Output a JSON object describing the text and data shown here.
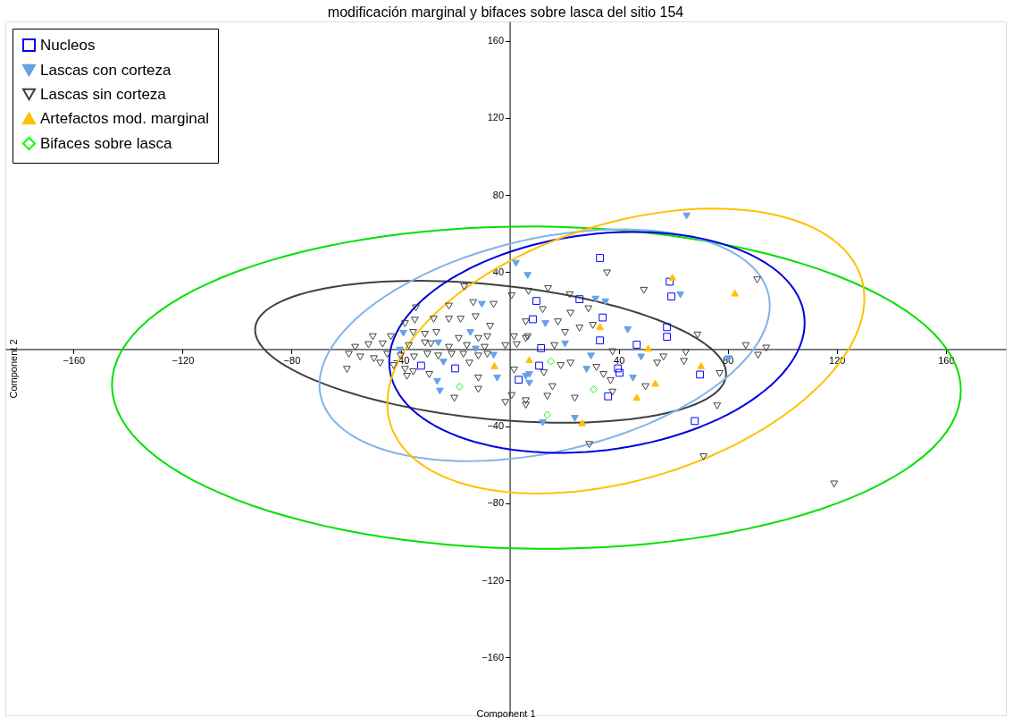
{
  "chart_data": {
    "type": "scatter",
    "title": "modificación marginal y bifaces sobre lasca del sitio 154",
    "xlabel": "Component 1",
    "ylabel": "Component 2",
    "xlim": [
      -185,
      182
    ],
    "ylim": [
      -190,
      170
    ],
    "xticks": [
      -160,
      -120,
      -80,
      -40,
      40,
      80,
      120,
      160
    ],
    "yticks": [
      -160,
      -120,
      -80,
      -40,
      40,
      80,
      120,
      160
    ],
    "grid": false,
    "legend": "top left",
    "series": [
      {
        "name": "Nucleos",
        "color": "#0000ff",
        "marker": "square",
        "x": [
          33.1,
          9.8,
          25.6,
          34.1,
          58.7,
          59.3,
          8.5,
          57.7,
          57.7,
          33.1,
          46.6,
          11.5,
          10.8,
          39.7,
          40.3,
          36.1,
          69.8,
          67.9,
          -32.5,
          -20,
          3.3
        ],
        "values": [
          47.3,
          25.0,
          25.9,
          16.4,
          35.0,
          27.3,
          15.5,
          11.4,
          6.4,
          4.5,
          2.3,
          0.5,
          -8.6,
          -10,
          -12.3,
          -24.5,
          -13.2,
          -37.3,
          -8.6,
          -10,
          -15.9
        ]
      },
      {
        "name": "Lascas con corteza",
        "color": "#66a3e8",
        "marker": "triangle-down",
        "x": [
          -10.2,
          -39.0,
          -40.3,
          -26.2,
          -14.4,
          -12.5,
          -24.3,
          -5.9,
          -4.6,
          -26.6,
          -25.6,
          5.9,
          2.3,
          6.6,
          31.5,
          35.1,
          13.1,
          43.3,
          20.3,
          62.6,
          64.9,
          7.2,
          7.2,
          29.8,
          28.2,
          45.2,
          48.2,
          80.3,
          12.1,
          23.9
        ],
        "values": [
          23.2,
          8.2,
          -0.5,
          3.2,
          8.6,
          0,
          -6.8,
          -3.2,
          -15,
          -16.8,
          -21.8,
          -14.1,
          44.5,
          38.2,
          25.9,
          24.5,
          13.2,
          10,
          2.7,
          28.2,
          69.1,
          -13.2,
          -17.7,
          -3.6,
          -10.5,
          -15,
          -4.1,
          -5,
          -38.2,
          -35.9
        ]
      },
      {
        "name": "Lascas sin corteza",
        "color": "#404040",
        "marker": "triangle-down-open",
        "x": [
          90.8,
          86.6,
          91.1,
          94.1,
          119.0,
          76.1,
          71.1,
          29.2,
          56.4,
          63.9,
          77.0,
          49.8,
          37.7,
          23.9,
          13.8,
          15.7,
          5.9,
          12.5,
          18.7,
          22.3,
          31.8,
          34.4,
          37.0,
          54.1,
          35.7,
          49.2,
          68.9,
          22.0,
          28.9,
          22.3,
          12.1,
          17.7,
          25.6,
          30.5,
          6.9,
          14.1,
          20.3,
          16.4,
          6.6,
          37.7,
          64.6,
          -16.7,
          -13.4,
          -5.9,
          0.7,
          -34.4,
          -22.3,
          -34.8,
          -27.9,
          -22.3,
          -18.0,
          -12.5,
          -7.2,
          5.9,
          -38.4,
          -50.2,
          -43.6,
          -35.4,
          -31.1,
          -26.9,
          -18.7,
          -11.5,
          -8.2,
          1.6,
          5.9,
          -56.7,
          -51.8,
          -46.6,
          -37.0,
          -31.1,
          -28.9,
          -22.3,
          -15.7,
          -9.2,
          -1.6,
          2.6,
          -59.0,
          -54.8,
          -49.8,
          -44.9,
          -40.0,
          -35.1,
          -30.2,
          -26.2,
          -21.3,
          -17.0,
          -11.5,
          -8.2,
          -59.7,
          -47.5,
          -42.6,
          -38.4,
          -37.7,
          -35.4,
          -29.5,
          -14.8,
          -11.5,
          -11.5,
          -20.3,
          0.7,
          -1.6,
          5.9,
          1.6
        ],
        "values": [
          35.9,
          1.8,
          -3.2,
          0.5,
          -70.0,
          -29.5,
          -55.9,
          -49.5,
          -4.1,
          -6.4,
          -12.7,
          -19.5,
          -22.3,
          -25.5,
          -24.5,
          -19.5,
          -29.1,
          -12.3,
          -8.6,
          -7.3,
          -9.5,
          -13.2,
          -16.4,
          -7.3,
          39.5,
          30.5,
          7.3,
          28.2,
          20.9,
          18.6,
          20.5,
          14.1,
          10.9,
          12.3,
          30.0,
          31.4,
          8.6,
          1.8,
          6.4,
          -1.4,
          -1.8,
          32.3,
          24.1,
          23.2,
          27.7,
          21.4,
          22.3,
          15.0,
          15.5,
          15.5,
          15.5,
          16.8,
          11.8,
          14.1,
          13.2,
          6.4,
          6.4,
          8.6,
          7.7,
          8.6,
          5.5,
          5.5,
          6.4,
          6.4,
          5.5,
          0.9,
          2.3,
          2.7,
          1.8,
          3.2,
          2.7,
          0.9,
          1.8,
          0.9,
          1.8,
          2.3,
          -2.7,
          -4.1,
          -5.0,
          -2.7,
          -3.6,
          -4.1,
          -2.7,
          -3.6,
          -2.7,
          -2.7,
          -3.6,
          -2.7,
          -10.5,
          -7.3,
          -8.6,
          -10.5,
          -14.1,
          -11.8,
          -13.2,
          -7.3,
          -15.0,
          -20.9,
          -25.5,
          -24.1,
          -27.7,
          -26.8,
          -10.9
        ]
      },
      {
        "name": "Artefactos mod. marginal",
        "color": "#ffc000",
        "marker": "triangle",
        "x": [
          59.7,
          82.6,
          33.1,
          50.8,
          7.2,
          70.2,
          53.4,
          46.6,
          26.6,
          -5.6
        ],
        "values": [
          37.3,
          29.1,
          11.8,
          0.5,
          -5.5,
          -8.6,
          -17.7,
          -25,
          -38.2,
          -8.6
        ]
      },
      {
        "name": "Bifaces sobre lasca",
        "color": "#00ff00",
        "marker": "diamond",
        "x": [
          -18.4,
          15.1,
          30.8,
          13.8
        ],
        "values": [
          -19.5,
          -6.4,
          -20.9,
          -34.1
        ]
      }
    ]
  }
}
